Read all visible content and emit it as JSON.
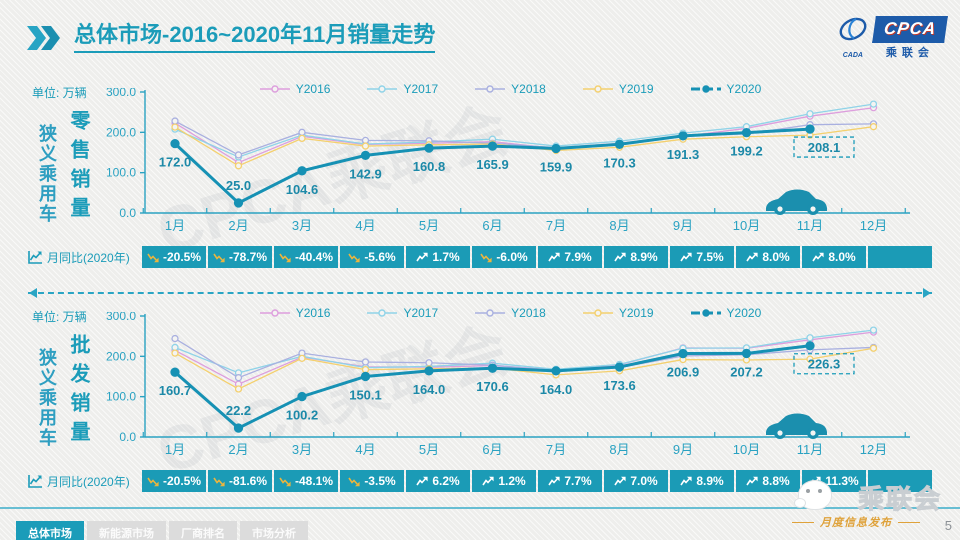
{
  "header": {
    "title_main": "总体市场",
    "title_suffix": "-2016~2020年11月销量走势",
    "logo_brand": "CPCA",
    "logo_sub": "乘联会",
    "logo_cada": "CADA"
  },
  "colors": {
    "accent": "#1b9cb9",
    "axis": "#2aa2c2",
    "label": "#1c89a8",
    "y2016": "#dd9edd",
    "y2017": "#8fd3e8",
    "y2018": "#a9b0e0",
    "y2019": "#f4d06e",
    "y2020": "#1691b4",
    "cell_bg": "#1b9bb6",
    "negative_icon": "#eab53f",
    "positive_icon": "#ffffff"
  },
  "watermark_text": "CPCA乘联会",
  "chart_data": [
    {
      "type": "line",
      "category": "狭义乘用车",
      "measure": "零售销量",
      "unit": "单位: 万辆",
      "x": [
        "1月",
        "2月",
        "3月",
        "4月",
        "5月",
        "6月",
        "7月",
        "8月",
        "9月",
        "10月",
        "11月",
        "12月"
      ],
      "ylim": [
        0,
        300
      ],
      "yticks": [
        "300.0",
        "200.0",
        "100.0",
        "0.0"
      ],
      "legend_position": "top",
      "grid": false,
      "series": [
        {
          "name": "Y2016",
          "values": [
            223,
            125,
            190,
            170,
            173,
            177,
            160,
            170,
            190,
            210,
            240,
            261
          ],
          "estimated": true
        },
        {
          "name": "Y2017",
          "values": [
            208,
            139,
            193,
            171,
            176,
            183,
            166,
            178,
            198,
            214,
            246,
            270
          ],
          "estimated": true
        },
        {
          "name": "Y2018",
          "values": [
            228,
            144,
            200,
            180,
            179,
            173,
            162,
            173,
            191,
            196,
            219,
            221
          ],
          "estimated": true
        },
        {
          "name": "Y2019",
          "values": [
            213,
            117,
            185,
            166,
            169,
            171,
            155,
            163,
            183,
            189,
            193,
            214
          ],
          "estimated": true
        },
        {
          "name": "Y2020",
          "values": [
            172.0,
            25.0,
            104.6,
            142.9,
            160.8,
            165.9,
            159.9,
            170.3,
            191.3,
            199.2,
            208.1
          ],
          "labeled": true,
          "boxed_last": true
        }
      ],
      "yoy": {
        "label": "月同比(2020年)",
        "values": [
          "-20.5%",
          "-78.7%",
          "-40.4%",
          "-5.6%",
          "1.7%",
          "-6.0%",
          "7.9%",
          "8.9%",
          "7.5%",
          "8.0%",
          "8.0%",
          ""
        ]
      }
    },
    {
      "type": "line",
      "category": "狭义乘用车",
      "measure": "批发销量",
      "unit": "单位: 万辆",
      "x": [
        "1月",
        "2月",
        "3月",
        "4月",
        "5月",
        "6月",
        "7月",
        "8月",
        "9月",
        "10月",
        "11月",
        "12月"
      ],
      "ylim": [
        0,
        300
      ],
      "yticks": [
        "300.0",
        "200.0",
        "100.0",
        "0.0"
      ],
      "legend_position": "top",
      "grid": false,
      "series": [
        {
          "name": "Y2016",
          "values": [
            215,
            131,
            198,
            174,
            173,
            177,
            166,
            179,
            221,
            220,
            241,
            260
          ],
          "estimated": true
        },
        {
          "name": "Y2017",
          "values": [
            222,
            159,
            200,
            172,
            175,
            183,
            168,
            180,
            220,
            221,
            246,
            265
          ],
          "estimated": true
        },
        {
          "name": "Y2018",
          "values": [
            244,
            147,
            208,
            186,
            184,
            178,
            165,
            172,
            201,
            204,
            216,
            222
          ],
          "estimated": true
        },
        {
          "name": "Y2019",
          "values": [
            208,
            119,
            195,
            167,
            169,
            171,
            154,
            164,
            192,
            191,
            193,
            220
          ],
          "estimated": true
        },
        {
          "name": "Y2020",
          "values": [
            160.7,
            22.2,
            100.2,
            150.1,
            164.0,
            170.6,
            164.0,
            173.6,
            206.9,
            207.2,
            226.3
          ],
          "labeled": true,
          "boxed_last": true
        }
      ],
      "yoy": {
        "label": "月同比(2020年)",
        "values": [
          "-20.5%",
          "-81.6%",
          "-48.1%",
          "-3.5%",
          "6.2%",
          "1.2%",
          "7.7%",
          "7.0%",
          "8.9%",
          "8.8%",
          "11.3%",
          ""
        ]
      }
    }
  ],
  "footer": {
    "tabs": [
      {
        "label": "总体市场",
        "active": true
      },
      {
        "label": "新能源市场",
        "active": false
      },
      {
        "label": "厂商排名",
        "active": false
      },
      {
        "label": "市场分析",
        "active": false
      }
    ],
    "brand_watermark": "乘联会",
    "publication": "月度信息发布",
    "page_number": "5"
  }
}
